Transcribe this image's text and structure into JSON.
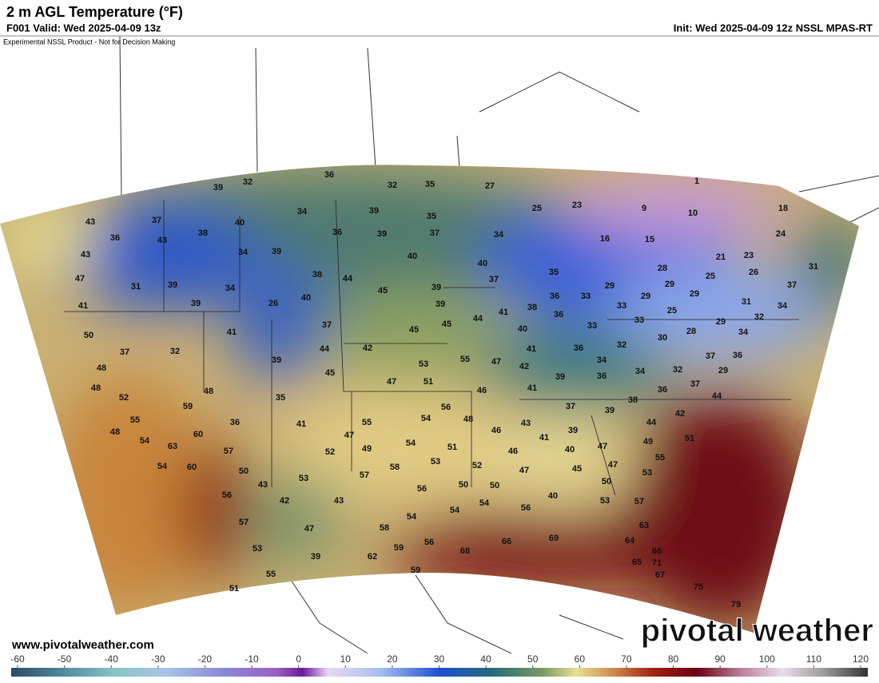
{
  "header": {
    "title": "2 m AGL Temperature (°F)",
    "valid": "F001 Valid: Wed 2025-04-09 13z",
    "init": "Init: Wed 2025-04-09 12z NSSL MPAS-RT",
    "disclaimer": "Experimental NSSL Product - Not for Decision Making"
  },
  "footer": {
    "url": "www.pivotalweather.com",
    "watermark": "pivotal weather"
  },
  "colorbar": {
    "ticks": [
      -60,
      -50,
      -40,
      -30,
      -20,
      -10,
      0,
      10,
      20,
      30,
      40,
      50,
      60,
      70,
      80,
      90,
      100,
      110,
      120
    ]
  },
  "stations": [
    39,
    32,
    36,
    32,
    35,
    27,
    1,
    43,
    37,
    40,
    34,
    39,
    35,
    25,
    23,
    9,
    10,
    18,
    36,
    43,
    38,
    36,
    39,
    37,
    34,
    16,
    15,
    24,
    43,
    34,
    39,
    40,
    40,
    21,
    23,
    47,
    31,
    39,
    34,
    38,
    44,
    45,
    39,
    37,
    35,
    36,
    33,
    29,
    28,
    29,
    25,
    26,
    31,
    37,
    41,
    39,
    26,
    40,
    39,
    44,
    41,
    38,
    36,
    33,
    29,
    29,
    25,
    31,
    34,
    50,
    41,
    37,
    45,
    45,
    40,
    33,
    33,
    32,
    29,
    28,
    30,
    34,
    37,
    32,
    44,
    42,
    53,
    55,
    41,
    36,
    32,
    37,
    36,
    48,
    39,
    45,
    47,
    42,
    34,
    36,
    39,
    34,
    32,
    29,
    48,
    47,
    51,
    46,
    41,
    36,
    37,
    44,
    52,
    48,
    35,
    38,
    59,
    56,
    37,
    39,
    42,
    55,
    36,
    41,
    54,
    48,
    43,
    44,
    48,
    60,
    55,
    47,
    46,
    39,
    49,
    51,
    54,
    63,
    57,
    52,
    49,
    54,
    51,
    41,
    40,
    47,
    55,
    54,
    60,
    50,
    57,
    58,
    53,
    52,
    46,
    47,
    45,
    47,
    53,
    43,
    53,
    56,
    50,
    50,
    50,
    56,
    42,
    43,
    54,
    54,
    56,
    40,
    53,
    57,
    57,
    47,
    58,
    54,
    63,
    53,
    59,
    56,
    68,
    66,
    69,
    64,
    66,
    39,
    62,
    65,
    71,
    55,
    59,
    67,
    51,
    75,
    79
  ]
}
